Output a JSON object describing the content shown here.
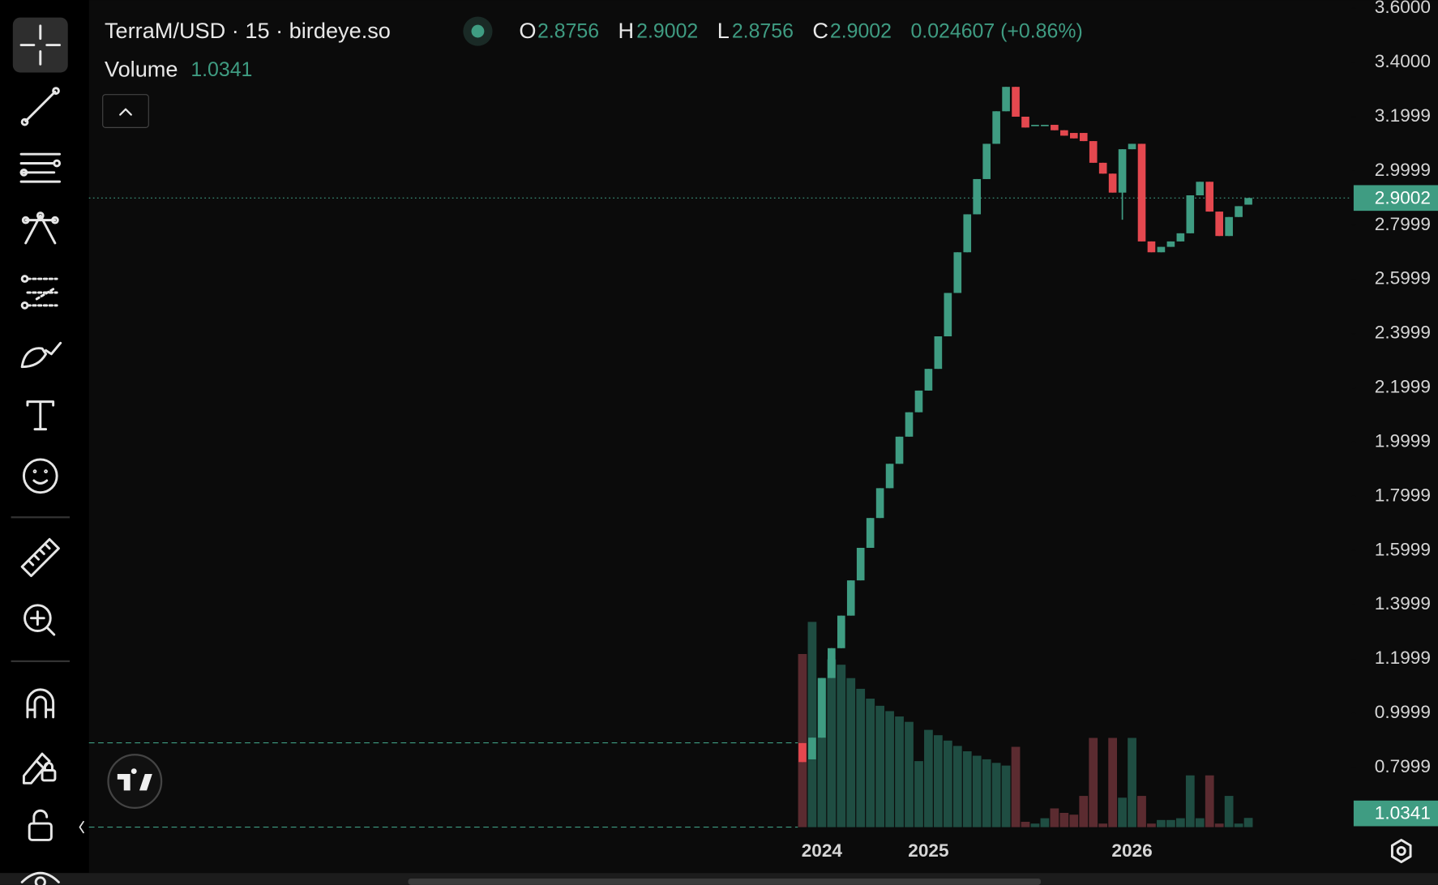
{
  "header": {
    "symbol": "TerraM/USD · 15 · birdeye.so",
    "open_label": "O",
    "open": "2.8756",
    "high_label": "H",
    "high": "2.9002",
    "low_label": "L",
    "low": "2.8756",
    "close_label": "C",
    "close": "2.9002",
    "change": "0.024607 (+0.86%)",
    "volume_label": "Volume",
    "volume": "1.0341"
  },
  "chart_data": {
    "type": "candlestick",
    "categories": [
      null,
      null,
      "2024",
      null,
      null,
      null,
      null,
      null,
      null,
      null,
      null,
      null,
      null,
      "2025",
      null,
      null,
      null,
      null,
      null,
      null,
      null,
      null,
      null,
      null,
      null,
      null,
      null,
      null,
      null,
      null,
      null,
      null,
      null,
      null,
      "2026",
      null,
      null,
      null,
      null,
      null,
      null,
      null,
      null,
      null,
      null,
      null,
      null
    ],
    "open": [
      0.89,
      0.83,
      0.91,
      1.13,
      1.24,
      1.36,
      1.49,
      1.61,
      1.72,
      1.83,
      1.92,
      2.02,
      2.11,
      2.19,
      2.27,
      2.39,
      2.55,
      2.7,
      2.84,
      2.97,
      3.1,
      3.22,
      3.31,
      3.2,
      3.17,
      3.17,
      3.17,
      3.15,
      3.14,
      3.14,
      3.11,
      3.03,
      2.99,
      2.92,
      3.08,
      3.1,
      2.74,
      2.7,
      2.72,
      2.74,
      2.77,
      2.91,
      2.96,
      2.85,
      2.76,
      2.83,
      2.8756
    ],
    "high": [
      0.89,
      0.91,
      1.13,
      1.24,
      1.36,
      1.49,
      1.61,
      1.72,
      1.83,
      1.92,
      2.02,
      2.11,
      2.19,
      2.27,
      2.39,
      2.55,
      2.7,
      2.84,
      2.97,
      3.1,
      3.22,
      3.31,
      3.31,
      3.2,
      3.17,
      3.17,
      3.17,
      3.15,
      3.14,
      3.14,
      3.11,
      3.03,
      2.99,
      3.08,
      3.1,
      3.1,
      2.74,
      2.72,
      2.74,
      2.77,
      2.91,
      2.96,
      2.96,
      2.85,
      2.83,
      2.87,
      2.9002
    ],
    "low": [
      0.82,
      0.83,
      0.91,
      1.13,
      1.24,
      1.36,
      1.49,
      1.61,
      1.72,
      1.83,
      1.92,
      2.02,
      2.11,
      2.19,
      2.27,
      2.39,
      2.55,
      2.7,
      2.84,
      2.97,
      3.1,
      3.22,
      3.2,
      3.16,
      3.17,
      3.17,
      3.15,
      3.13,
      3.12,
      3.11,
      3.03,
      2.99,
      2.92,
      2.82,
      3.08,
      2.74,
      2.7,
      2.7,
      2.72,
      2.74,
      2.77,
      2.91,
      2.85,
      2.76,
      2.76,
      2.83,
      2.8756
    ],
    "close": [
      0.82,
      0.91,
      1.13,
      1.24,
      1.36,
      1.49,
      1.61,
      1.72,
      1.83,
      1.92,
      2.02,
      2.11,
      2.19,
      2.27,
      2.39,
      2.55,
      2.7,
      2.84,
      2.97,
      3.1,
      3.22,
      3.31,
      3.2,
      3.16,
      3.17,
      3.17,
      3.15,
      3.13,
      3.12,
      3.11,
      3.03,
      2.99,
      2.92,
      3.08,
      3.1,
      2.74,
      2.7,
      2.72,
      2.74,
      2.77,
      2.91,
      2.96,
      2.85,
      2.76,
      2.83,
      2.87,
      2.9002
    ],
    "volume": [
      19.4,
      23.0,
      16.7,
      18.8,
      18.2,
      16.7,
      15.5,
      14.4,
      13.6,
      13.0,
      12.4,
      11.8,
      7.4,
      10.9,
      10.3,
      9.7,
      9.1,
      8.5,
      8.0,
      7.6,
      7.2,
      6.9,
      9.0,
      0.6,
      0.4,
      1.0,
      2.1,
      1.6,
      1.4,
      3.5,
      10.0,
      0.4,
      10.0,
      3.3,
      10.0,
      3.5,
      0.4,
      0.8,
      0.8,
      1.0,
      5.8,
      1.0,
      5.8,
      0.4,
      3.5,
      0.4,
      1.0341
    ],
    "up_color": "#3f9c82",
    "down_color": "#e4484f",
    "volume_up_color": "#1f4d42",
    "volume_down_color": "#5b2b30",
    "ylim": [
      0.58,
      3.63
    ],
    "yticks": [
      {
        "value": 3.6,
        "label": "3.6000"
      },
      {
        "value": 3.4,
        "label": "3.4000"
      },
      3.1999,
      2.9999,
      2.7999,
      2.5999,
      2.3999,
      2.1999,
      1.9999,
      1.7999,
      1.5999,
      1.3999,
      1.1999,
      0.9999,
      0.7999
    ],
    "y2lim": [
      0,
      30
    ],
    "last_price": 2.9002,
    "last_volume": 1.0341
  }
}
